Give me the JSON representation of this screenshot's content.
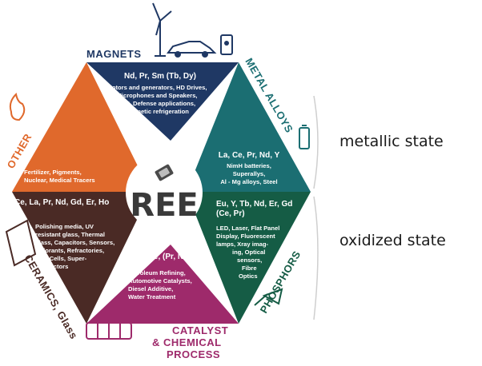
{
  "center_label": "REE",
  "states": {
    "metallic": "metallic state",
    "oxidized": "oxidized state"
  },
  "segments": {
    "magnets": {
      "category": "MAGNETS",
      "elements": "Nd, Pr, Sm (Tb, Dy)",
      "applications": [
        "Motors and generators, HD Drives,",
        "Microphones and Speakers,",
        "MRI, Defense applications,",
        "Magnetic refrigeration"
      ],
      "color": "#1f3864"
    },
    "metal_alloys": {
      "category": "METAL ALLOYS",
      "elements": "La, Ce, Pr, Nd, Y",
      "applications": [
        "NimH batteries,",
        "Superallys,",
        "Al - Mg alloys, Steel"
      ],
      "color": "#1b6e72"
    },
    "phosphors": {
      "category": "PHOSPHORS",
      "elements": "Eu, Y, Tb, Nd, Er, Gd",
      "elements_line2": "(Ce, Pr)",
      "applications": [
        "LED, Laser, Flat Panel",
        "Display, Fluorescent",
        "lamps, Xray imag-",
        "ing, Optical",
        "sensors,",
        "Fibre",
        "Optics"
      ],
      "color": "#155c45"
    },
    "catalyst": {
      "category_lines": [
        "CATALYST",
        "& CHEMICAL",
        "PROCESS"
      ],
      "elements": "La, Ce, (Pr, Nd)",
      "applications": [
        "Petroleum Refining,",
        "Automotive Catalysts,",
        "Diesel Additive,",
        "Water Treatment"
      ],
      "color": "#9e2a6b"
    },
    "ceramics": {
      "category": "CERAMICS, Glass",
      "elements": "Ce, La, Pr, Nd, Gd, Er, Ho",
      "applications": [
        "Polishing media, UV",
        "resistant glass, Thermal",
        "glass, Capacitors, Sensors,",
        "Colorants, Refractories,",
        "Fuel Cells, Super-",
        "conductors"
      ],
      "color": "#4a2a25"
    },
    "other": {
      "category": "OTHER",
      "elements": "",
      "applications": [
        "Fertilizer, Pigments,",
        "Nuclear, Medical Tracers"
      ],
      "color": "#e0692c"
    }
  }
}
